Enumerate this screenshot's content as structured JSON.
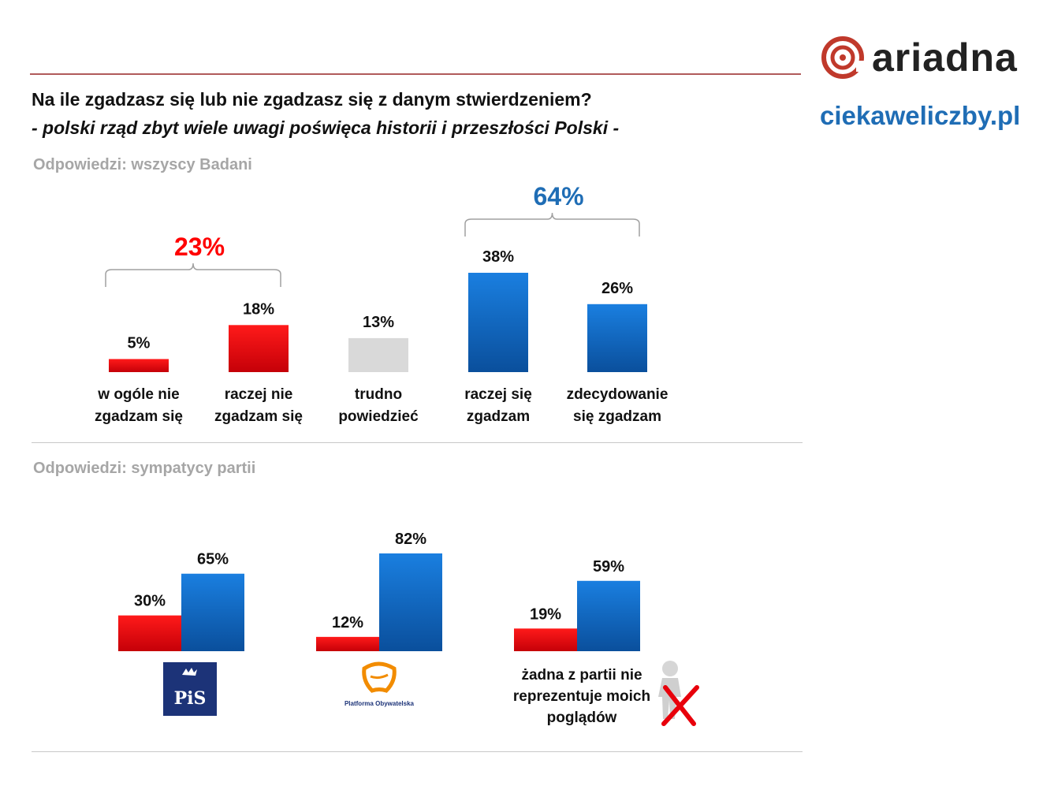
{
  "header": {
    "question": "Na ile zgadzasz się lub nie zgadzasz się z danym stwierdzeniem?",
    "statement": "- polski rząd zbyt wiele uwagi poświęca historii i przeszłości Polski -",
    "logo_text": "ariadna",
    "site": "ciekaweliczby.pl"
  },
  "sections": {
    "all": "Odpowiedzi: wszyscy Badani",
    "parties": "Odpowiedzi: sympatycy partii"
  },
  "colors": {
    "red": "#e8000b",
    "blue": "#0b6fd0",
    "grey": "#d9d9d9",
    "red_total": "#ff0000",
    "blue_total": "#1f6db5"
  },
  "icons": {
    "pis": "pis-logo",
    "po": "platforma-obywatelska-logo",
    "none": "figure-with-red-x-icon"
  },
  "parties": {
    "pis_logo_text": "PiS",
    "po_logo_text": "Platforma Obywatelska",
    "none_label": "żadna z partii nie reprezentuje moich poglądów"
  },
  "chart_data": [
    {
      "type": "bar",
      "categories": [
        "w ogóle nie zgadzam się",
        "raczej nie zgadzam się",
        "trudno powiedzieć",
        "raczej się zgadzam",
        "zdecydowanie się zgadzam"
      ],
      "values": [
        5,
        18,
        13,
        38,
        26
      ],
      "value_labels": [
        "5%",
        "18%",
        "13%",
        "38%",
        "26%"
      ],
      "bar_colors": [
        "red",
        "red",
        "grey",
        "blue",
        "blue"
      ],
      "ylim": [
        0,
        40
      ],
      "annotations": [
        {
          "text": "23%",
          "spans": [
            "w ogóle nie zgadzam się",
            "raczej nie zgadzam się"
          ],
          "color": "red_total"
        },
        {
          "text": "64%",
          "spans": [
            "raczej się zgadzam",
            "zdecydowanie się zgadzam"
          ],
          "color": "blue_total"
        }
      ]
    },
    {
      "type": "bar",
      "categories": [
        "PiS",
        "Platforma Obywatelska",
        "żadna z partii nie reprezentuje moich poglądów"
      ],
      "series": [
        {
          "values": [
            30,
            12,
            19
          ],
          "labels": [
            "30%",
            "12%",
            "19%"
          ],
          "color": "red"
        },
        {
          "values": [
            65,
            82,
            59
          ],
          "labels": [
            "65%",
            "82%",
            "59%"
          ],
          "color": "blue"
        }
      ],
      "ylim": [
        0,
        82
      ]
    }
  ]
}
